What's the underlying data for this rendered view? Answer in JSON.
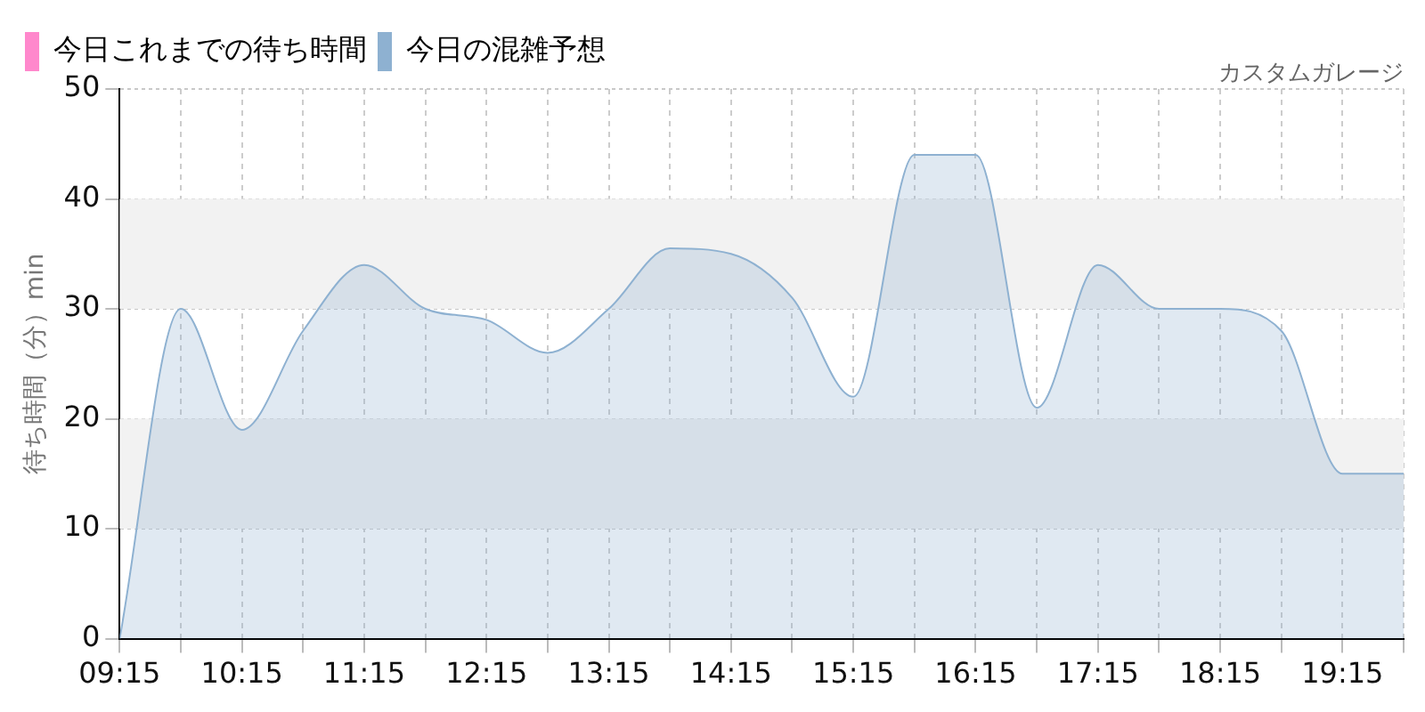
{
  "chart_data": {
    "type": "area",
    "subtitle": "カスタムガレージ",
    "ylabel": "待ち時間（分）min",
    "x": [
      9.25,
      9.75,
      10.25,
      10.75,
      11.25,
      11.75,
      12.25,
      12.75,
      13.25,
      13.75,
      14.25,
      14.75,
      15.25,
      15.75,
      16.25,
      16.75,
      17.25,
      17.75,
      18.25,
      18.75,
      19.25,
      19.75
    ],
    "series": [
      {
        "name": "今日これまでの待ち時間",
        "color": "#ff88cc",
        "values": [
          null,
          null,
          null,
          null,
          null,
          null,
          null,
          null,
          null,
          null,
          null,
          null,
          null,
          null,
          null,
          null,
          null,
          null,
          null,
          null,
          null,
          null
        ]
      },
      {
        "name": "今日の混雑予想",
        "color": "#8eb1d1",
        "values": [
          0,
          30,
          19,
          28,
          34,
          30,
          29,
          26,
          30,
          35.5,
          35,
          31,
          22,
          44,
          44,
          21,
          34,
          30,
          30,
          28,
          15,
          15
        ]
      }
    ],
    "xlim": [
      9.25,
      19.75
    ],
    "xticks": [
      {
        "value": 9.25,
        "label": "09:15"
      },
      {
        "value": 9.75,
        "label": null
      },
      {
        "value": 10.25,
        "label": "10:15"
      },
      {
        "value": 10.75,
        "label": null
      },
      {
        "value": 11.25,
        "label": "11:15"
      },
      {
        "value": 11.75,
        "label": null
      },
      {
        "value": 12.25,
        "label": "12:15"
      },
      {
        "value": 12.75,
        "label": null
      },
      {
        "value": 13.25,
        "label": "13:15"
      },
      {
        "value": 13.75,
        "label": null
      },
      {
        "value": 14.25,
        "label": "14:15"
      },
      {
        "value": 14.75,
        "label": null
      },
      {
        "value": 15.25,
        "label": "15:15"
      },
      {
        "value": 15.75,
        "label": null
      },
      {
        "value": 16.25,
        "label": "16:15"
      },
      {
        "value": 16.75,
        "label": null
      },
      {
        "value": 17.25,
        "label": "17:15"
      },
      {
        "value": 17.75,
        "label": null
      },
      {
        "value": 18.25,
        "label": "18:15"
      },
      {
        "value": 18.75,
        "label": null
      },
      {
        "value": 19.25,
        "label": "19:15"
      },
      {
        "value": 19.75,
        "label": null
      }
    ],
    "ylim": [
      0,
      50
    ],
    "yticks": [
      0,
      10,
      20,
      30,
      40,
      50
    ],
    "bands": [
      {
        "axis": "y",
        "from": 10,
        "to": 20,
        "color": "#f2f2f2"
      },
      {
        "axis": "y",
        "from": 30,
        "to": 40,
        "color": "#f2f2f2"
      }
    ],
    "grid": true,
    "legend": "top left"
  }
}
